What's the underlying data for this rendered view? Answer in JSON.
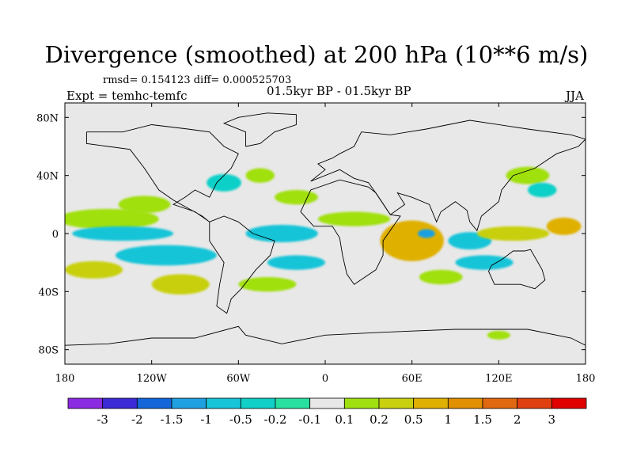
{
  "chart_data": {
    "type": "heatmap",
    "title": "Divergence (smoothed) at 200 hPa (10**6 m/s)",
    "stats_text": "rmsd= 0.154123 diff= 0.000525703",
    "left_label": "Expt = temhc-temfc",
    "center_label": "01.5kyr BP - 01.5kyr BP",
    "right_label": "JJA",
    "lon_range": [
      -180,
      180
    ],
    "lat_range": [
      -90,
      90
    ],
    "x_ticks": [
      {
        "value": -180,
        "label": "180"
      },
      {
        "value": -120,
        "label": "120W"
      },
      {
        "value": -60,
        "label": "60W"
      },
      {
        "value": 0,
        "label": "0"
      },
      {
        "value": 60,
        "label": "60E"
      },
      {
        "value": 120,
        "label": "120E"
      },
      {
        "value": 180,
        "label": "180"
      }
    ],
    "y_ticks": [
      {
        "value": 80,
        "label": "80N"
      },
      {
        "value": 40,
        "label": "40N"
      },
      {
        "value": 0,
        "label": "0"
      },
      {
        "value": -40,
        "label": "40S"
      },
      {
        "value": -80,
        "label": "80S"
      }
    ],
    "colorbar": {
      "colors": [
        "#8a2be2",
        "#3b2ad6",
        "#1466d9",
        "#1fa0e0",
        "#18c4d8",
        "#10d0c8",
        "#28e0a0",
        "#e8e8e8",
        "#a0e010",
        "#c8d010",
        "#e0b000",
        "#e09000",
        "#e06810",
        "#e04010",
        "#e00000"
      ],
      "labels": [
        "-3",
        "-2",
        "-1.5",
        "-1",
        "-0.5",
        "-0.2",
        "-0.1",
        "0.1",
        "0.2",
        "0.5",
        "1",
        "1.5",
        "2",
        "3"
      ]
    },
    "features": [
      {
        "name": "itcz-band-west-pacific",
        "lon": -150,
        "lat": 10,
        "rlon": 35,
        "rlat": 7,
        "level": 8
      },
      {
        "name": "north-pacific-anomaly",
        "lon": -125,
        "lat": 20,
        "rlon": 18,
        "rlat": 6,
        "level": 8
      },
      {
        "name": "trop-pacific-neg",
        "lon": -140,
        "lat": 0,
        "rlon": 35,
        "rlat": 5,
        "level": 4
      },
      {
        "name": "south-pacific-neg",
        "lon": -110,
        "lat": -15,
        "rlon": 35,
        "rlat": 7,
        "level": 4
      },
      {
        "name": "south-pacific-pos",
        "lon": -160,
        "lat": -25,
        "rlon": 20,
        "rlat": 6,
        "level": 9
      },
      {
        "name": "south-pacific-pos-2",
        "lon": -100,
        "lat": -35,
        "rlon": 20,
        "rlat": 7,
        "level": 9
      },
      {
        "name": "atlantic-neg-north",
        "lon": -70,
        "lat": 35,
        "rlon": 12,
        "rlat": 6,
        "level": 5
      },
      {
        "name": "atlantic-pos-north",
        "lon": -45,
        "lat": 40,
        "rlon": 10,
        "rlat": 5,
        "level": 8
      },
      {
        "name": "atlantic-pos-east",
        "lon": -20,
        "lat": 25,
        "rlon": 15,
        "rlat": 5,
        "level": 8
      },
      {
        "name": "trop-atlantic-neg",
        "lon": -30,
        "lat": 0,
        "rlon": 25,
        "rlat": 6,
        "level": 4
      },
      {
        "name": "south-atlantic-neg",
        "lon": -20,
        "lat": -20,
        "rlon": 20,
        "rlat": 5,
        "level": 4
      },
      {
        "name": "south-atlantic-pos",
        "lon": -40,
        "lat": -35,
        "rlon": 20,
        "rlat": 5,
        "level": 8
      },
      {
        "name": "africa-pos",
        "lon": 20,
        "lat": 10,
        "rlon": 25,
        "rlat": 5,
        "level": 8
      },
      {
        "name": "indian-ocean-pos-core",
        "lon": 60,
        "lat": -5,
        "rlon": 22,
        "rlat": 14,
        "level": 10
      },
      {
        "name": "indian-ocean-neg",
        "lon": 70,
        "lat": 0,
        "rlon": 6,
        "rlat": 3,
        "level": 3
      },
      {
        "name": "se-asia-neg",
        "lon": 100,
        "lat": -5,
        "rlon": 15,
        "rlat": 6,
        "level": 4
      },
      {
        "name": "maritime-continent-pos",
        "lon": 130,
        "lat": 0,
        "rlon": 25,
        "rlat": 5,
        "level": 9
      },
      {
        "name": "west-pacific-pos",
        "lon": 165,
        "lat": 5,
        "rlon": 12,
        "rlat": 6,
        "level": 10
      },
      {
        "name": "south-indian-neg",
        "lon": 110,
        "lat": -20,
        "rlon": 20,
        "rlat": 5,
        "level": 4
      },
      {
        "name": "south-indian-pos",
        "lon": 80,
        "lat": -30,
        "rlon": 15,
        "rlat": 5,
        "level": 8
      },
      {
        "name": "east-asia-pos",
        "lon": 140,
        "lat": 40,
        "rlon": 15,
        "rlat": 6,
        "level": 8
      },
      {
        "name": "east-asia-neg",
        "lon": 150,
        "lat": 30,
        "rlon": 10,
        "rlat": 5,
        "level": 5
      },
      {
        "name": "antarctic-pos",
        "lon": 120,
        "lat": -70,
        "rlon": 8,
        "rlat": 3,
        "level": 8
      }
    ]
  }
}
